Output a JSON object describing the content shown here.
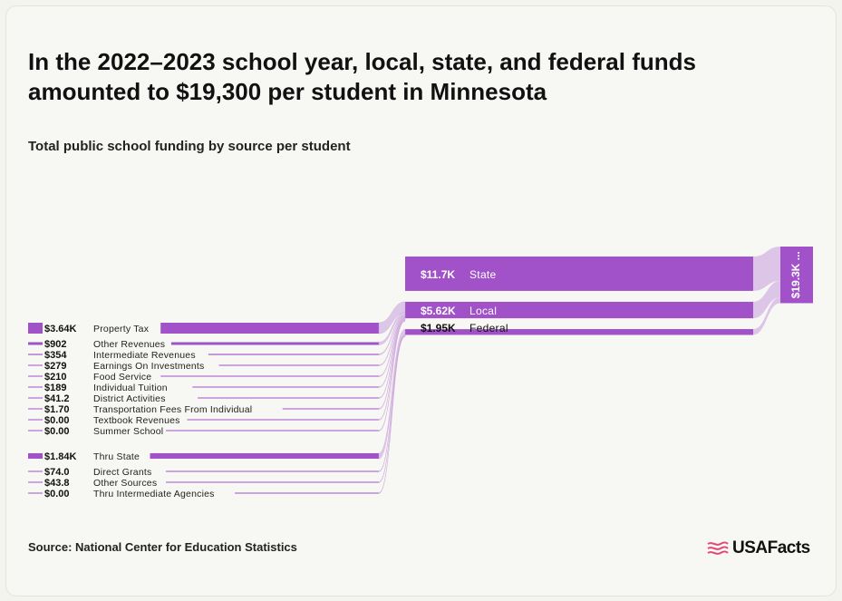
{
  "title": "In the 2022–2023 school year, local, state, and federal funds amounted to $19,300 per student in Minnesota",
  "subtitle": "Total public school funding by source per student",
  "source": "Source: National Center for Education Statistics",
  "logo": "USAFacts",
  "colors": {
    "accent": "#a252c8",
    "link": "#d9bfe7",
    "line": "#c79ad8",
    "logo_icon": "#e04a78"
  },
  "chart_data": {
    "type": "sankey",
    "title": "In the 2022–2023 school year, local, state, and federal funds amounted to $19,300 per student in Minnesota",
    "subtitle": "Total public school funding by source per student",
    "unit": "USD per student",
    "total": {
      "value": 19300,
      "label": "$19.3K ..."
    },
    "sources": [
      {
        "name": "State",
        "value": 11700,
        "label": "$11.7K"
      },
      {
        "name": "Local",
        "value": 5620,
        "label": "$5.62K"
      },
      {
        "name": "Federal",
        "value": 1950,
        "label": "$1.95K"
      }
    ],
    "groups": [
      {
        "target": "Local",
        "items": [
          {
            "name": "Property Tax",
            "value": 3640,
            "label": "$3.64K"
          },
          {
            "name": "Other Revenues",
            "value": 902,
            "label": "$902"
          },
          {
            "name": "Intermediate Revenues",
            "value": 354,
            "label": "$354"
          },
          {
            "name": "Earnings On Investments",
            "value": 279,
            "label": "$279"
          },
          {
            "name": "Food Service",
            "value": 210,
            "label": "$210"
          },
          {
            "name": "Individual Tuition",
            "value": 189,
            "label": "$189"
          },
          {
            "name": "District Activities",
            "value": 41.2,
            "label": "$41.2"
          },
          {
            "name": "Transportation Fees From Individual",
            "value": 1.7,
            "label": "$1.70"
          },
          {
            "name": "Textbook Revenues",
            "value": 0,
            "label": "$0.00"
          },
          {
            "name": "Summer School",
            "value": 0,
            "label": "$0.00"
          }
        ]
      },
      {
        "target": "Federal",
        "items": [
          {
            "name": "Thru State",
            "value": 1840,
            "label": "$1.84K"
          },
          {
            "name": "Direct Grants",
            "value": 74.0,
            "label": "$74.0"
          },
          {
            "name": "Other Sources",
            "value": 43.8,
            "label": "$43.8"
          },
          {
            "name": "Thru Intermediate Agencies",
            "value": 0,
            "label": "$0.00"
          }
        ]
      }
    ]
  }
}
